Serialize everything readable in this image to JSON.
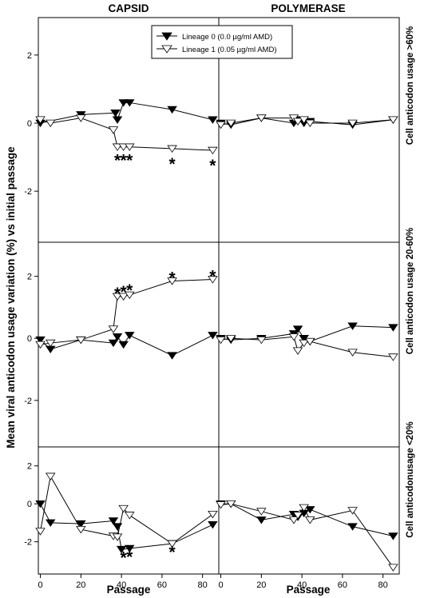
{
  "figure": {
    "col_titles": [
      "CAPSID",
      "POLYMERASE"
    ],
    "ylabel": "Mean viral anticodon usage variation (%) vs initial passage",
    "xlabel": "Passage",
    "row_labels": [
      "Cell anticodon usage >60%",
      "Cell anticodon usage 20-60%",
      "Cell anticodonusage <20%"
    ],
    "legend": [
      {
        "label": "Lineage 0 (0.0 µg/ml AMD)",
        "marker": "filled-triangle-down",
        "color": "#000000"
      },
      {
        "label": "Lineage 1 (0.05 µg/ml AMD)",
        "marker": "open-triangle-down",
        "color": "#000000"
      }
    ],
    "significance_marker": "*"
  },
  "chart_data": [
    {
      "type": "line",
      "column": "CAPSID",
      "row": "Cell anticodon usage >60%",
      "xlim": [
        -1,
        88
      ],
      "ylim": [
        -3.5,
        3.1
      ],
      "xticks": [
        0,
        20,
        40,
        60,
        80
      ],
      "yticks": [
        -2,
        0,
        2
      ],
      "series": [
        {
          "name": "Lineage 0 (0.0 µg/ml AMD)",
          "x": [
            0,
            20,
            37,
            38,
            41,
            44,
            65,
            85
          ],
          "y": [
            0.0,
            0.25,
            0.3,
            0.1,
            0.6,
            0.6,
            0.4,
            0.1
          ]
        },
        {
          "name": "Lineage 1 (0.05 µg/ml AMD)",
          "x": [
            0,
            5,
            20,
            36,
            38,
            41,
            44,
            65,
            85
          ],
          "y": [
            0.1,
            0.0,
            0.15,
            -0.2,
            -0.7,
            -0.7,
            -0.7,
            -0.75,
            -0.8
          ]
        }
      ],
      "annotations": [
        {
          "text": "*",
          "x": 38,
          "y": -1.05
        },
        {
          "text": "*",
          "x": 41,
          "y": -1.05
        },
        {
          "text": "*",
          "x": 44,
          "y": -1.05
        },
        {
          "text": "*",
          "x": 65,
          "y": -1.15
        },
        {
          "text": "*",
          "x": 85,
          "y": -1.2
        }
      ]
    },
    {
      "type": "line",
      "column": "POLYMERASE",
      "row": "Cell anticodon usage >60%",
      "xlim": [
        -1,
        88
      ],
      "ylim": [
        -3.5,
        3.1
      ],
      "xticks": [
        0,
        20,
        40,
        60,
        80
      ],
      "yticks": [
        -2,
        0,
        2
      ],
      "series": [
        {
          "name": "Lineage 0 (0.0 µg/ml AMD)",
          "x": [
            0,
            5,
            20,
            36,
            38,
            41,
            44,
            65,
            85
          ],
          "y": [
            0.0,
            -0.05,
            0.15,
            0.0,
            0.1,
            0.0,
            0.05,
            -0.05,
            0.1
          ]
        },
        {
          "name": "Lineage 1 (0.05 µg/ml AMD)",
          "x": [
            0,
            5,
            20,
            36,
            38,
            41,
            44,
            65,
            85
          ],
          "y": [
            -0.05,
            0.0,
            0.15,
            0.15,
            0.05,
            0.1,
            0.0,
            0.0,
            0.1
          ]
        }
      ],
      "annotations": []
    },
    {
      "type": "line",
      "column": "CAPSID",
      "row": "Cell anticodon usage 20-60%",
      "xlim": [
        -1,
        88
      ],
      "ylim": [
        -3.5,
        3.1
      ],
      "xticks": [
        0,
        20,
        40,
        60,
        80
      ],
      "yticks": [
        -2,
        0,
        2
      ],
      "series": [
        {
          "name": "Lineage 0 (0.0 µg/ml AMD)",
          "x": [
            0,
            5,
            20,
            36,
            38,
            41,
            44,
            65,
            85
          ],
          "y": [
            -0.05,
            -0.35,
            -0.05,
            -0.15,
            0.05,
            -0.2,
            0.1,
            -0.55,
            0.1
          ]
        },
        {
          "name": "Lineage 1 (0.05 µg/ml AMD)",
          "x": [
            0,
            5,
            20,
            36,
            38,
            41,
            44,
            65,
            85
          ],
          "y": [
            -0.2,
            -0.15,
            -0.05,
            0.3,
            1.35,
            1.35,
            1.4,
            1.85,
            1.9
          ]
        }
      ],
      "annotations": [
        {
          "text": "*",
          "x": 38,
          "y": 1.5
        },
        {
          "text": "*",
          "x": 41,
          "y": 1.55
        },
        {
          "text": "*",
          "x": 44,
          "y": 1.6
        },
        {
          "text": "*",
          "x": 65,
          "y": 2.0
        },
        {
          "text": "*",
          "x": 85,
          "y": 2.05
        }
      ]
    },
    {
      "type": "line",
      "column": "POLYMERASE",
      "row": "Cell anticodon usage 20-60%",
      "xlim": [
        -1,
        88
      ],
      "ylim": [
        -3.5,
        3.1
      ],
      "xticks": [
        0,
        20,
        40,
        60,
        80
      ],
      "yticks": [
        -2,
        0,
        2
      ],
      "series": [
        {
          "name": "Lineage 0 (0.0 µg/ml AMD)",
          "x": [
            0,
            5,
            20,
            36,
            38,
            41,
            44,
            65,
            85
          ],
          "y": [
            0.0,
            -0.05,
            0.0,
            0.15,
            0.3,
            0.0,
            -0.1,
            0.4,
            0.35
          ]
        },
        {
          "name": "Lineage 1 (0.05 µg/ml AMD)",
          "x": [
            0,
            5,
            20,
            36,
            38,
            41,
            44,
            65,
            85
          ],
          "y": [
            -0.05,
            0.0,
            -0.05,
            0.05,
            -0.4,
            -0.15,
            -0.1,
            -0.45,
            -0.6
          ]
        }
      ],
      "annotations": []
    },
    {
      "type": "line",
      "column": "CAPSID",
      "row": "Cell anticodonusage <20%",
      "xlim": [
        -1,
        88
      ],
      "ylim": [
        -3.7,
        3.0
      ],
      "xticks": [
        0,
        20,
        40,
        60,
        80
      ],
      "yticks": [
        -2,
        0,
        2
      ],
      "series": [
        {
          "name": "Lineage 0 (0.0 µg/ml AMD)",
          "x": [
            0,
            5,
            20,
            36,
            38,
            40,
            44,
            65,
            85
          ],
          "y": [
            0.0,
            -1.0,
            -1.05,
            -0.9,
            -1.2,
            -2.4,
            -2.35,
            -2.1,
            -1.1
          ]
        },
        {
          "name": "Lineage 1 (0.05 µg/ml AMD)",
          "x": [
            0,
            5,
            20,
            36,
            38,
            41,
            44,
            65,
            85
          ],
          "y": [
            -1.45,
            1.45,
            -1.35,
            -1.7,
            -1.75,
            -0.25,
            -0.6,
            -2.1,
            -0.55
          ]
        }
      ],
      "annotations": [
        {
          "text": "*",
          "x": 41,
          "y": -2.75
        },
        {
          "text": "*",
          "x": 44,
          "y": -2.7
        },
        {
          "text": "*",
          "x": 65,
          "y": -2.45
        }
      ]
    },
    {
      "type": "line",
      "column": "POLYMERASE",
      "row": "Cell anticodonusage <20%",
      "xlim": [
        -1,
        88
      ],
      "ylim": [
        -3.7,
        3.0
      ],
      "xticks": [
        0,
        20,
        40,
        60,
        80
      ],
      "yticks": [
        -2,
        0,
        2
      ],
      "series": [
        {
          "name": "Lineage 0 (0.0 µg/ml AMD)",
          "x": [
            0,
            5,
            20,
            36,
            38,
            41,
            44,
            65,
            85
          ],
          "y": [
            0.0,
            0.0,
            -0.85,
            -0.55,
            -0.7,
            -0.5,
            -0.3,
            -1.2,
            -1.7
          ]
        },
        {
          "name": "Lineage 1 (0.05 µg/ml AMD)",
          "x": [
            0,
            5,
            20,
            36,
            38,
            41,
            44,
            65,
            85
          ],
          "y": [
            -0.05,
            0.0,
            -0.4,
            -0.85,
            -0.6,
            -0.2,
            -0.85,
            -0.35,
            -3.35
          ]
        }
      ],
      "annotations": []
    }
  ]
}
